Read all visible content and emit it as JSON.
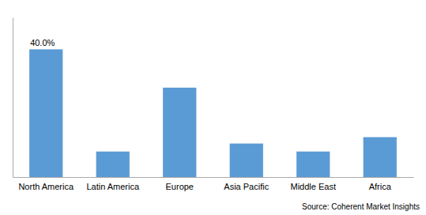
{
  "chart_data": {
    "type": "bar",
    "categories": [
      "North America",
      "Latin America",
      "Europe",
      "Asia Pacific",
      "Middle East",
      "Africa"
    ],
    "values": [
      40.0,
      8.0,
      28.0,
      10.5,
      8.0,
      12.5
    ],
    "color": "#5B9BD5",
    "ylim": [
      0,
      50
    ],
    "tick_labels": "x",
    "grid": false,
    "annotations": [
      {
        "text": "40.0%",
        "x": "North America",
        "y": 40.0
      }
    ],
    "source": "Source: Coherent Market Insights"
  }
}
